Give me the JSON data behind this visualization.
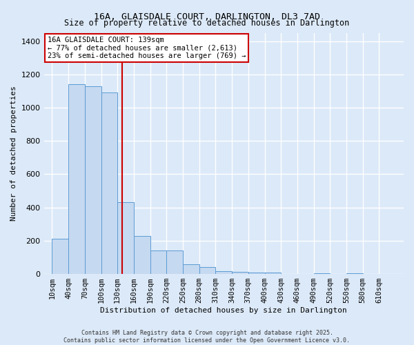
{
  "title": "16A, GLAISDALE COURT, DARLINGTON, DL3 7AD",
  "subtitle": "Size of property relative to detached houses in Darlington",
  "xlabel": "Distribution of detached houses by size in Darlington",
  "ylabel": "Number of detached properties",
  "bar_color": "#c5d9f0",
  "bar_edge_color": "#5b9bd5",
  "background_color": "#dce9f8",
  "grid_color": "#ffffff",
  "fig_background": "#dce9f8",
  "categories": [
    "10sqm",
    "40sqm",
    "70sqm",
    "100sqm",
    "130sqm",
    "160sqm",
    "190sqm",
    "220sqm",
    "250sqm",
    "280sqm",
    "310sqm",
    "340sqm",
    "370sqm",
    "400sqm",
    "430sqm",
    "460sqm",
    "490sqm",
    "520sqm",
    "550sqm",
    "580sqm",
    "610sqm"
  ],
  "values": [
    210,
    1140,
    1130,
    1090,
    430,
    230,
    140,
    140,
    60,
    40,
    15,
    12,
    8,
    7,
    0,
    0,
    4,
    0,
    4,
    0,
    0
  ],
  "redline_color": "#cc0000",
  "annotation_text": "16A GLAISDALE COURT: 139sqm\n← 77% of detached houses are smaller (2,613)\n23% of semi-detached houses are larger (769) →",
  "annotation_box_color": "#ffffff",
  "annotation_border_color": "#cc0000",
  "ylim": [
    0,
    1450
  ],
  "yticks": [
    0,
    200,
    400,
    600,
    800,
    1000,
    1200,
    1400
  ],
  "copyright_text": "Contains HM Land Registry data © Crown copyright and database right 2025.\nContains public sector information licensed under the Open Government Licence v3.0.",
  "bin_width": 30,
  "property_sqm": 139
}
